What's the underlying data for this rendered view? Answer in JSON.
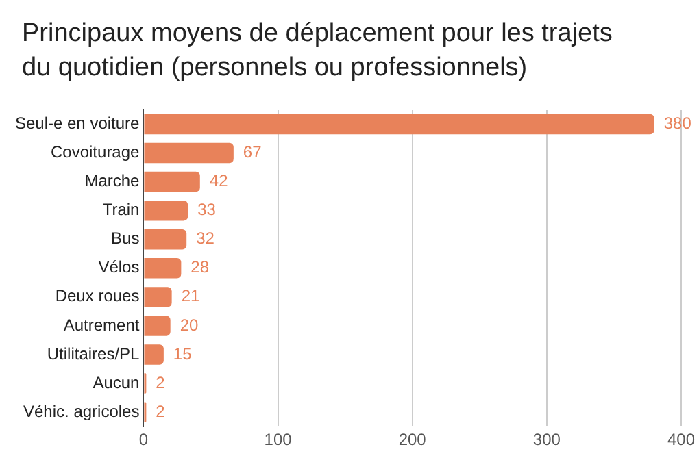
{
  "chart_data": {
    "type": "bar",
    "title": "Principaux moyens de déplacement pour les trajets du quotidien (personnels ou professionnels)",
    "orientation": "horizontal",
    "categories": [
      "Seul-e en voiture",
      "Covoiturage",
      "Marche",
      "Train",
      "Bus",
      "Vélos",
      "Deux roues",
      "Autrement",
      "Utilitaires/PL",
      "Aucun",
      "Véhic. agricoles"
    ],
    "values": [
      380,
      67,
      42,
      33,
      32,
      28,
      21,
      20,
      15,
      2,
      2
    ],
    "color": "#e8825a",
    "xlim": [
      0,
      400
    ],
    "xticks": [
      0,
      100,
      200,
      300,
      400
    ],
    "grid": "x",
    "data_labels": true
  }
}
